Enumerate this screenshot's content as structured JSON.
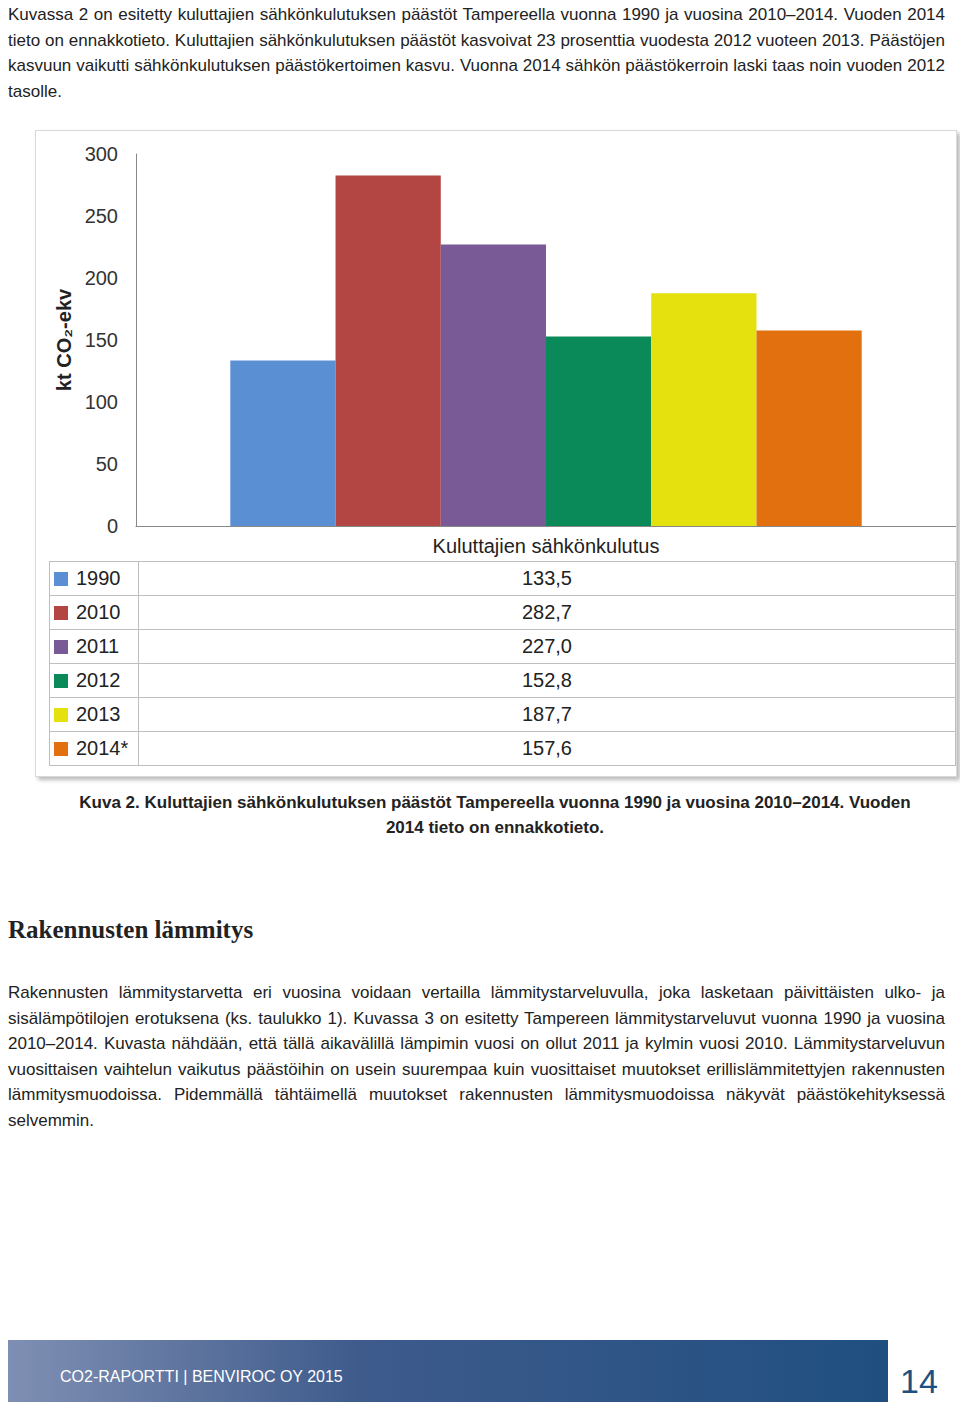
{
  "document": {
    "intro": "Kuvassa 2 on esitetty kuluttajien sähkönkulutuksen päästöt Tampereella vuonna 1990 ja vuosina 2010–2014. Vuoden 2014 tieto on ennakkotieto. Kuluttajien sähkönkulutuksen päästöt kasvoivat 23 prosenttia vuodesta 2012 vuoteen 2013. Päästöjen kasvuun vaikutti sähkönkulutuksen päästökertoimen kasvu. Vuonna 2014 sähkön päästökerroin laski taas noin vuoden 2012 tasolle.",
    "caption": "Kuva 2. Kuluttajien sähkönkulutuksen päästöt Tampereella vuonna 1990 ja vuosina 2010–2014. Vuoden 2014 tieto on ennakkotieto.",
    "heading": "Rakennusten lämmitys",
    "paragraph": "Rakennusten lämmitystarvetta eri vuosina voidaan vertailla lämmitystarveluvulla, joka lasketaan päivittäisten ulko- ja sisälämpötilojen erotuksena (ks. taulukko 1). Kuvassa 3 on esitetty Tampereen lämmitystarveluvut vuonna 1990 ja vuosina 2010–2014. Kuvasta nähdään, että tällä aikavälillä lämpimin vuosi on ollut 2011 ja kylmin vuosi 2010. Lämmitystarveluvun vuosittaisen vaihtelun vaikutus päästöihin on usein suurempaa kuin vuosittaiset muutokset erillislämmitettyjen rakennusten lämmitysmuodoissa. Pidemmällä tähtäimellä muutokset rakennusten lämmitysmuodoissa näkyvät päästökehityksessä selvemmin.",
    "footer": "CO2-RAPORTTI | BENVIROC OY 2015",
    "page_number": "14"
  },
  "chart_data": {
    "type": "bar",
    "y_label": "kt CO₂-ekv",
    "categories": [
      "Kuluttajien sähkönkulutus"
    ],
    "series": [
      {
        "name": "1990",
        "color": "#5b8fd4",
        "values": [
          133.5
        ],
        "value_labels": [
          "133,5"
        ]
      },
      {
        "name": "2010",
        "color": "#b34542",
        "values": [
          282.7
        ],
        "value_labels": [
          "282,7"
        ]
      },
      {
        "name": "2011",
        "color": "#7a5a96",
        "values": [
          227.0
        ],
        "value_labels": [
          "227,0"
        ]
      },
      {
        "name": "2012",
        "color": "#0a8a58",
        "values": [
          152.8
        ],
        "value_labels": [
          "152,8"
        ]
      },
      {
        "name": "2013",
        "color": "#e5e10f",
        "values": [
          187.7
        ],
        "value_labels": [
          "187,7"
        ]
      },
      {
        "name": "2014*",
        "color": "#e3700f",
        "values": [
          157.6
        ],
        "value_labels": [
          "157,6"
        ]
      }
    ],
    "ylim": [
      0,
      300
    ],
    "yticks": [
      0,
      50,
      100,
      150,
      200,
      250,
      300
    ],
    "grid": false
  }
}
